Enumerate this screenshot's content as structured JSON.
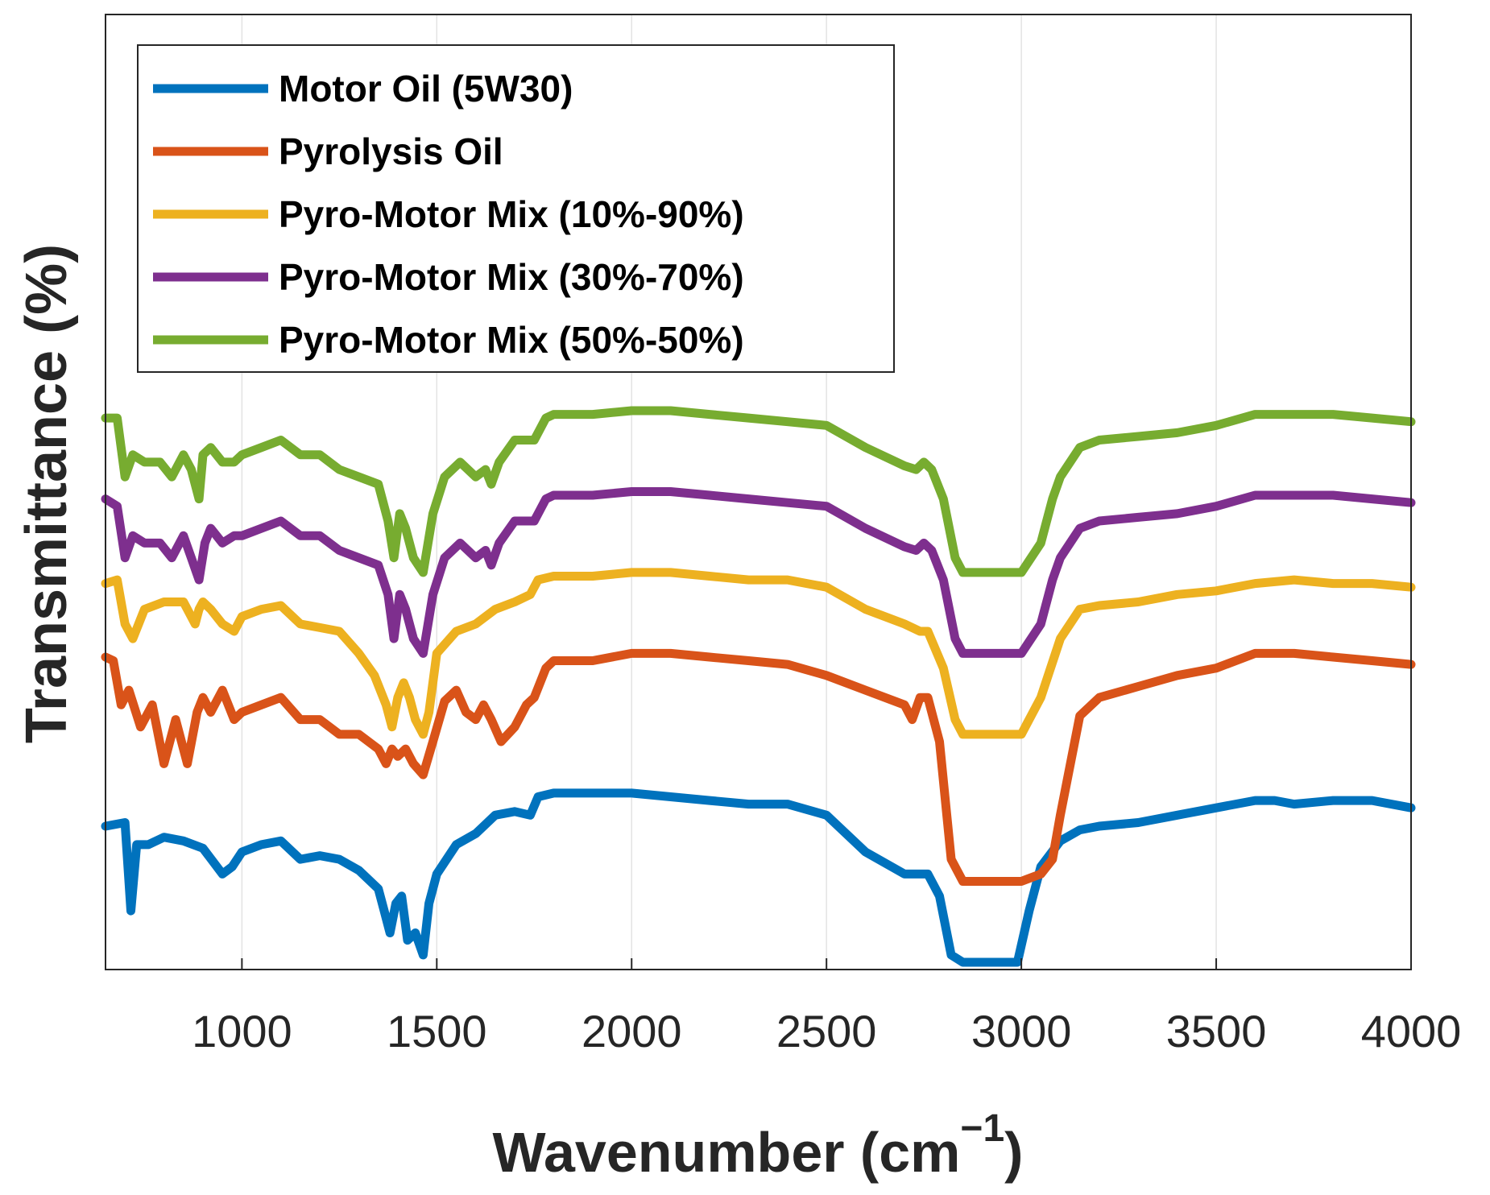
{
  "chart_data": {
    "type": "line",
    "title": "",
    "xlabel": "Wavenumber (cm",
    "xlabel_unit_exponent": "−1",
    "xlabel_close": ")",
    "ylabel": "Transmittance (%)",
    "xlim": [
      650,
      4000
    ],
    "ylim": [
      0,
      1
    ],
    "y_ticks_shown": false,
    "grid": "vertical",
    "legend_position": "top-left",
    "x_ticks": [
      1000,
      1500,
      2000,
      2500,
      3000,
      3500,
      4000
    ],
    "x_tick_labels": [
      "1000",
      "1500",
      "2000",
      "2500",
      "3000",
      "3500",
      "4000"
    ],
    "series": [
      {
        "name": "Motor Oil (5W30)",
        "color": "#0072BD",
        "note": "relative transmittance, arbitrary units (y axis has no tick labels)",
        "x": [
          650,
          700,
          715,
          730,
          760,
          800,
          850,
          900,
          950,
          975,
          1000,
          1050,
          1100,
          1150,
          1200,
          1250,
          1300,
          1350,
          1365,
          1380,
          1395,
          1410,
          1425,
          1445,
          1465,
          1480,
          1500,
          1550,
          1600,
          1650,
          1700,
          1740,
          1760,
          1800,
          1900,
          2000,
          2100,
          2200,
          2300,
          2400,
          2500,
          2600,
          2700,
          2760,
          2790,
          2820,
          2850,
          2900,
          2950,
          2990,
          3020,
          3050,
          3100,
          3150,
          3200,
          3300,
          3400,
          3500,
          3600,
          3650,
          3700,
          3800,
          3900,
          4000
        ],
        "y": [
          0.185,
          0.19,
          0.07,
          0.16,
          0.16,
          0.17,
          0.165,
          0.155,
          0.12,
          0.13,
          0.15,
          0.16,
          0.165,
          0.14,
          0.145,
          0.14,
          0.125,
          0.1,
          0.07,
          0.04,
          0.08,
          0.09,
          0.03,
          0.04,
          0.01,
          0.08,
          0.12,
          0.16,
          0.175,
          0.2,
          0.205,
          0.2,
          0.225,
          0.23,
          0.23,
          0.23,
          0.225,
          0.22,
          0.215,
          0.215,
          0.2,
          0.15,
          0.12,
          0.12,
          0.09,
          0.01,
          0.0,
          0.0,
          0.0,
          0.0,
          0.07,
          0.13,
          0.165,
          0.18,
          0.185,
          0.19,
          0.2,
          0.21,
          0.22,
          0.22,
          0.215,
          0.22,
          0.22,
          0.21
        ]
      },
      {
        "name": "Pyrolysis Oil",
        "color": "#D95319",
        "note": "relative transmittance, arbitrary units",
        "x": [
          650,
          670,
          690,
          710,
          740,
          770,
          800,
          830,
          860,
          885,
          900,
          920,
          950,
          980,
          1000,
          1050,
          1100,
          1150,
          1200,
          1250,
          1300,
          1350,
          1370,
          1385,
          1400,
          1420,
          1440,
          1465,
          1490,
          1520,
          1550,
          1575,
          1600,
          1620,
          1640,
          1665,
          1700,
          1730,
          1750,
          1780,
          1800,
          1900,
          2000,
          2100,
          2200,
          2300,
          2400,
          2500,
          2600,
          2700,
          2720,
          2740,
          2760,
          2790,
          2820,
          2850,
          2900,
          2950,
          3000,
          3050,
          3080,
          3100,
          3150,
          3200,
          3300,
          3400,
          3500,
          3600,
          3700,
          3800,
          3900,
          4000
        ],
        "y": [
          0.415,
          0.41,
          0.35,
          0.37,
          0.32,
          0.35,
          0.27,
          0.33,
          0.27,
          0.34,
          0.36,
          0.34,
          0.37,
          0.33,
          0.34,
          0.35,
          0.36,
          0.33,
          0.33,
          0.31,
          0.31,
          0.29,
          0.27,
          0.29,
          0.28,
          0.29,
          0.27,
          0.255,
          0.3,
          0.355,
          0.37,
          0.34,
          0.33,
          0.35,
          0.33,
          0.3,
          0.32,
          0.35,
          0.36,
          0.4,
          0.41,
          0.41,
          0.42,
          0.42,
          0.415,
          0.41,
          0.405,
          0.39,
          0.37,
          0.35,
          0.33,
          0.36,
          0.36,
          0.3,
          0.14,
          0.11,
          0.11,
          0.11,
          0.11,
          0.12,
          0.14,
          0.2,
          0.335,
          0.36,
          0.375,
          0.39,
          0.4,
          0.42,
          0.42,
          0.415,
          0.41,
          0.405
        ]
      },
      {
        "name": "Pyro-Motor Mix (10%-90%)",
        "color": "#EDB120",
        "note": "relative transmittance, arbitrary units",
        "x": [
          650,
          680,
          700,
          720,
          750,
          800,
          850,
          880,
          890,
          900,
          920,
          950,
          980,
          1000,
          1050,
          1100,
          1150,
          1200,
          1250,
          1300,
          1340,
          1370,
          1385,
          1400,
          1415,
          1430,
          1445,
          1465,
          1480,
          1500,
          1550,
          1600,
          1650,
          1700,
          1740,
          1760,
          1800,
          1900,
          2000,
          2100,
          2200,
          2300,
          2400,
          2500,
          2600,
          2700,
          2740,
          2760,
          2800,
          2830,
          2850,
          2900,
          2950,
          3000,
          3050,
          3100,
          3150,
          3200,
          3300,
          3400,
          3500,
          3600,
          3700,
          3800,
          3900,
          4000
        ],
        "y": [
          0.515,
          0.52,
          0.46,
          0.44,
          0.48,
          0.49,
          0.49,
          0.46,
          0.48,
          0.49,
          0.48,
          0.46,
          0.45,
          0.47,
          0.48,
          0.485,
          0.46,
          0.455,
          0.45,
          0.42,
          0.39,
          0.35,
          0.32,
          0.36,
          0.38,
          0.36,
          0.33,
          0.31,
          0.34,
          0.42,
          0.45,
          0.46,
          0.48,
          0.49,
          0.5,
          0.52,
          0.525,
          0.525,
          0.53,
          0.53,
          0.525,
          0.52,
          0.52,
          0.51,
          0.48,
          0.46,
          0.45,
          0.45,
          0.4,
          0.33,
          0.31,
          0.31,
          0.31,
          0.31,
          0.36,
          0.44,
          0.48,
          0.485,
          0.49,
          0.5,
          0.505,
          0.515,
          0.52,
          0.515,
          0.515,
          0.51
        ]
      },
      {
        "name": "Pyro-Motor Mix (30%-70%)",
        "color": "#7E2F8E",
        "note": "relative transmittance, arbitrary units",
        "x": [
          650,
          680,
          700,
          720,
          750,
          790,
          820,
          850,
          870,
          890,
          905,
          920,
          950,
          980,
          1000,
          1050,
          1100,
          1150,
          1200,
          1250,
          1300,
          1350,
          1375,
          1390,
          1405,
          1420,
          1440,
          1465,
          1490,
          1520,
          1560,
          1600,
          1625,
          1640,
          1660,
          1700,
          1750,
          1780,
          1800,
          1900,
          2000,
          2100,
          2200,
          2300,
          2400,
          2500,
          2600,
          2700,
          2730,
          2750,
          2770,
          2800,
          2830,
          2850,
          2900,
          2950,
          3000,
          3050,
          3080,
          3100,
          3150,
          3200,
          3300,
          3400,
          3500,
          3600,
          3700,
          3800,
          3900,
          4000
        ],
        "y": [
          0.63,
          0.62,
          0.55,
          0.58,
          0.57,
          0.57,
          0.55,
          0.58,
          0.55,
          0.52,
          0.57,
          0.59,
          0.57,
          0.58,
          0.58,
          0.59,
          0.6,
          0.58,
          0.58,
          0.56,
          0.55,
          0.54,
          0.5,
          0.44,
          0.5,
          0.48,
          0.44,
          0.42,
          0.5,
          0.55,
          0.57,
          0.55,
          0.56,
          0.54,
          0.57,
          0.6,
          0.6,
          0.63,
          0.635,
          0.635,
          0.64,
          0.64,
          0.635,
          0.63,
          0.625,
          0.62,
          0.59,
          0.565,
          0.56,
          0.57,
          0.56,
          0.52,
          0.44,
          0.42,
          0.42,
          0.42,
          0.42,
          0.46,
          0.52,
          0.55,
          0.59,
          0.6,
          0.605,
          0.61,
          0.62,
          0.635,
          0.635,
          0.635,
          0.63,
          0.625
        ]
      },
      {
        "name": "Pyro-Motor Mix (50%-50%)",
        "color": "#77AC30",
        "note": "relative transmittance, arbitrary units",
        "x": [
          650,
          680,
          700,
          720,
          750,
          790,
          820,
          850,
          870,
          890,
          900,
          920,
          950,
          980,
          1000,
          1050,
          1100,
          1150,
          1200,
          1250,
          1300,
          1350,
          1375,
          1390,
          1405,
          1420,
          1440,
          1465,
          1490,
          1520,
          1560,
          1600,
          1625,
          1640,
          1660,
          1700,
          1750,
          1780,
          1800,
          1900,
          2000,
          2100,
          2200,
          2300,
          2400,
          2500,
          2600,
          2700,
          2730,
          2750,
          2770,
          2800,
          2830,
          2850,
          2900,
          2950,
          3000,
          3050,
          3080,
          3100,
          3150,
          3200,
          3300,
          3400,
          3500,
          3600,
          3700,
          3800,
          3900,
          4000
        ],
        "y": [
          0.74,
          0.74,
          0.66,
          0.69,
          0.68,
          0.68,
          0.66,
          0.69,
          0.67,
          0.63,
          0.69,
          0.7,
          0.68,
          0.68,
          0.69,
          0.7,
          0.71,
          0.69,
          0.69,
          0.67,
          0.66,
          0.65,
          0.6,
          0.55,
          0.61,
          0.59,
          0.55,
          0.53,
          0.61,
          0.66,
          0.68,
          0.66,
          0.67,
          0.65,
          0.68,
          0.71,
          0.71,
          0.74,
          0.745,
          0.745,
          0.75,
          0.75,
          0.745,
          0.74,
          0.735,
          0.73,
          0.7,
          0.675,
          0.67,
          0.68,
          0.67,
          0.63,
          0.55,
          0.53,
          0.53,
          0.53,
          0.53,
          0.57,
          0.63,
          0.66,
          0.7,
          0.71,
          0.715,
          0.72,
          0.73,
          0.745,
          0.745,
          0.745,
          0.74,
          0.735
        ]
      }
    ]
  }
}
